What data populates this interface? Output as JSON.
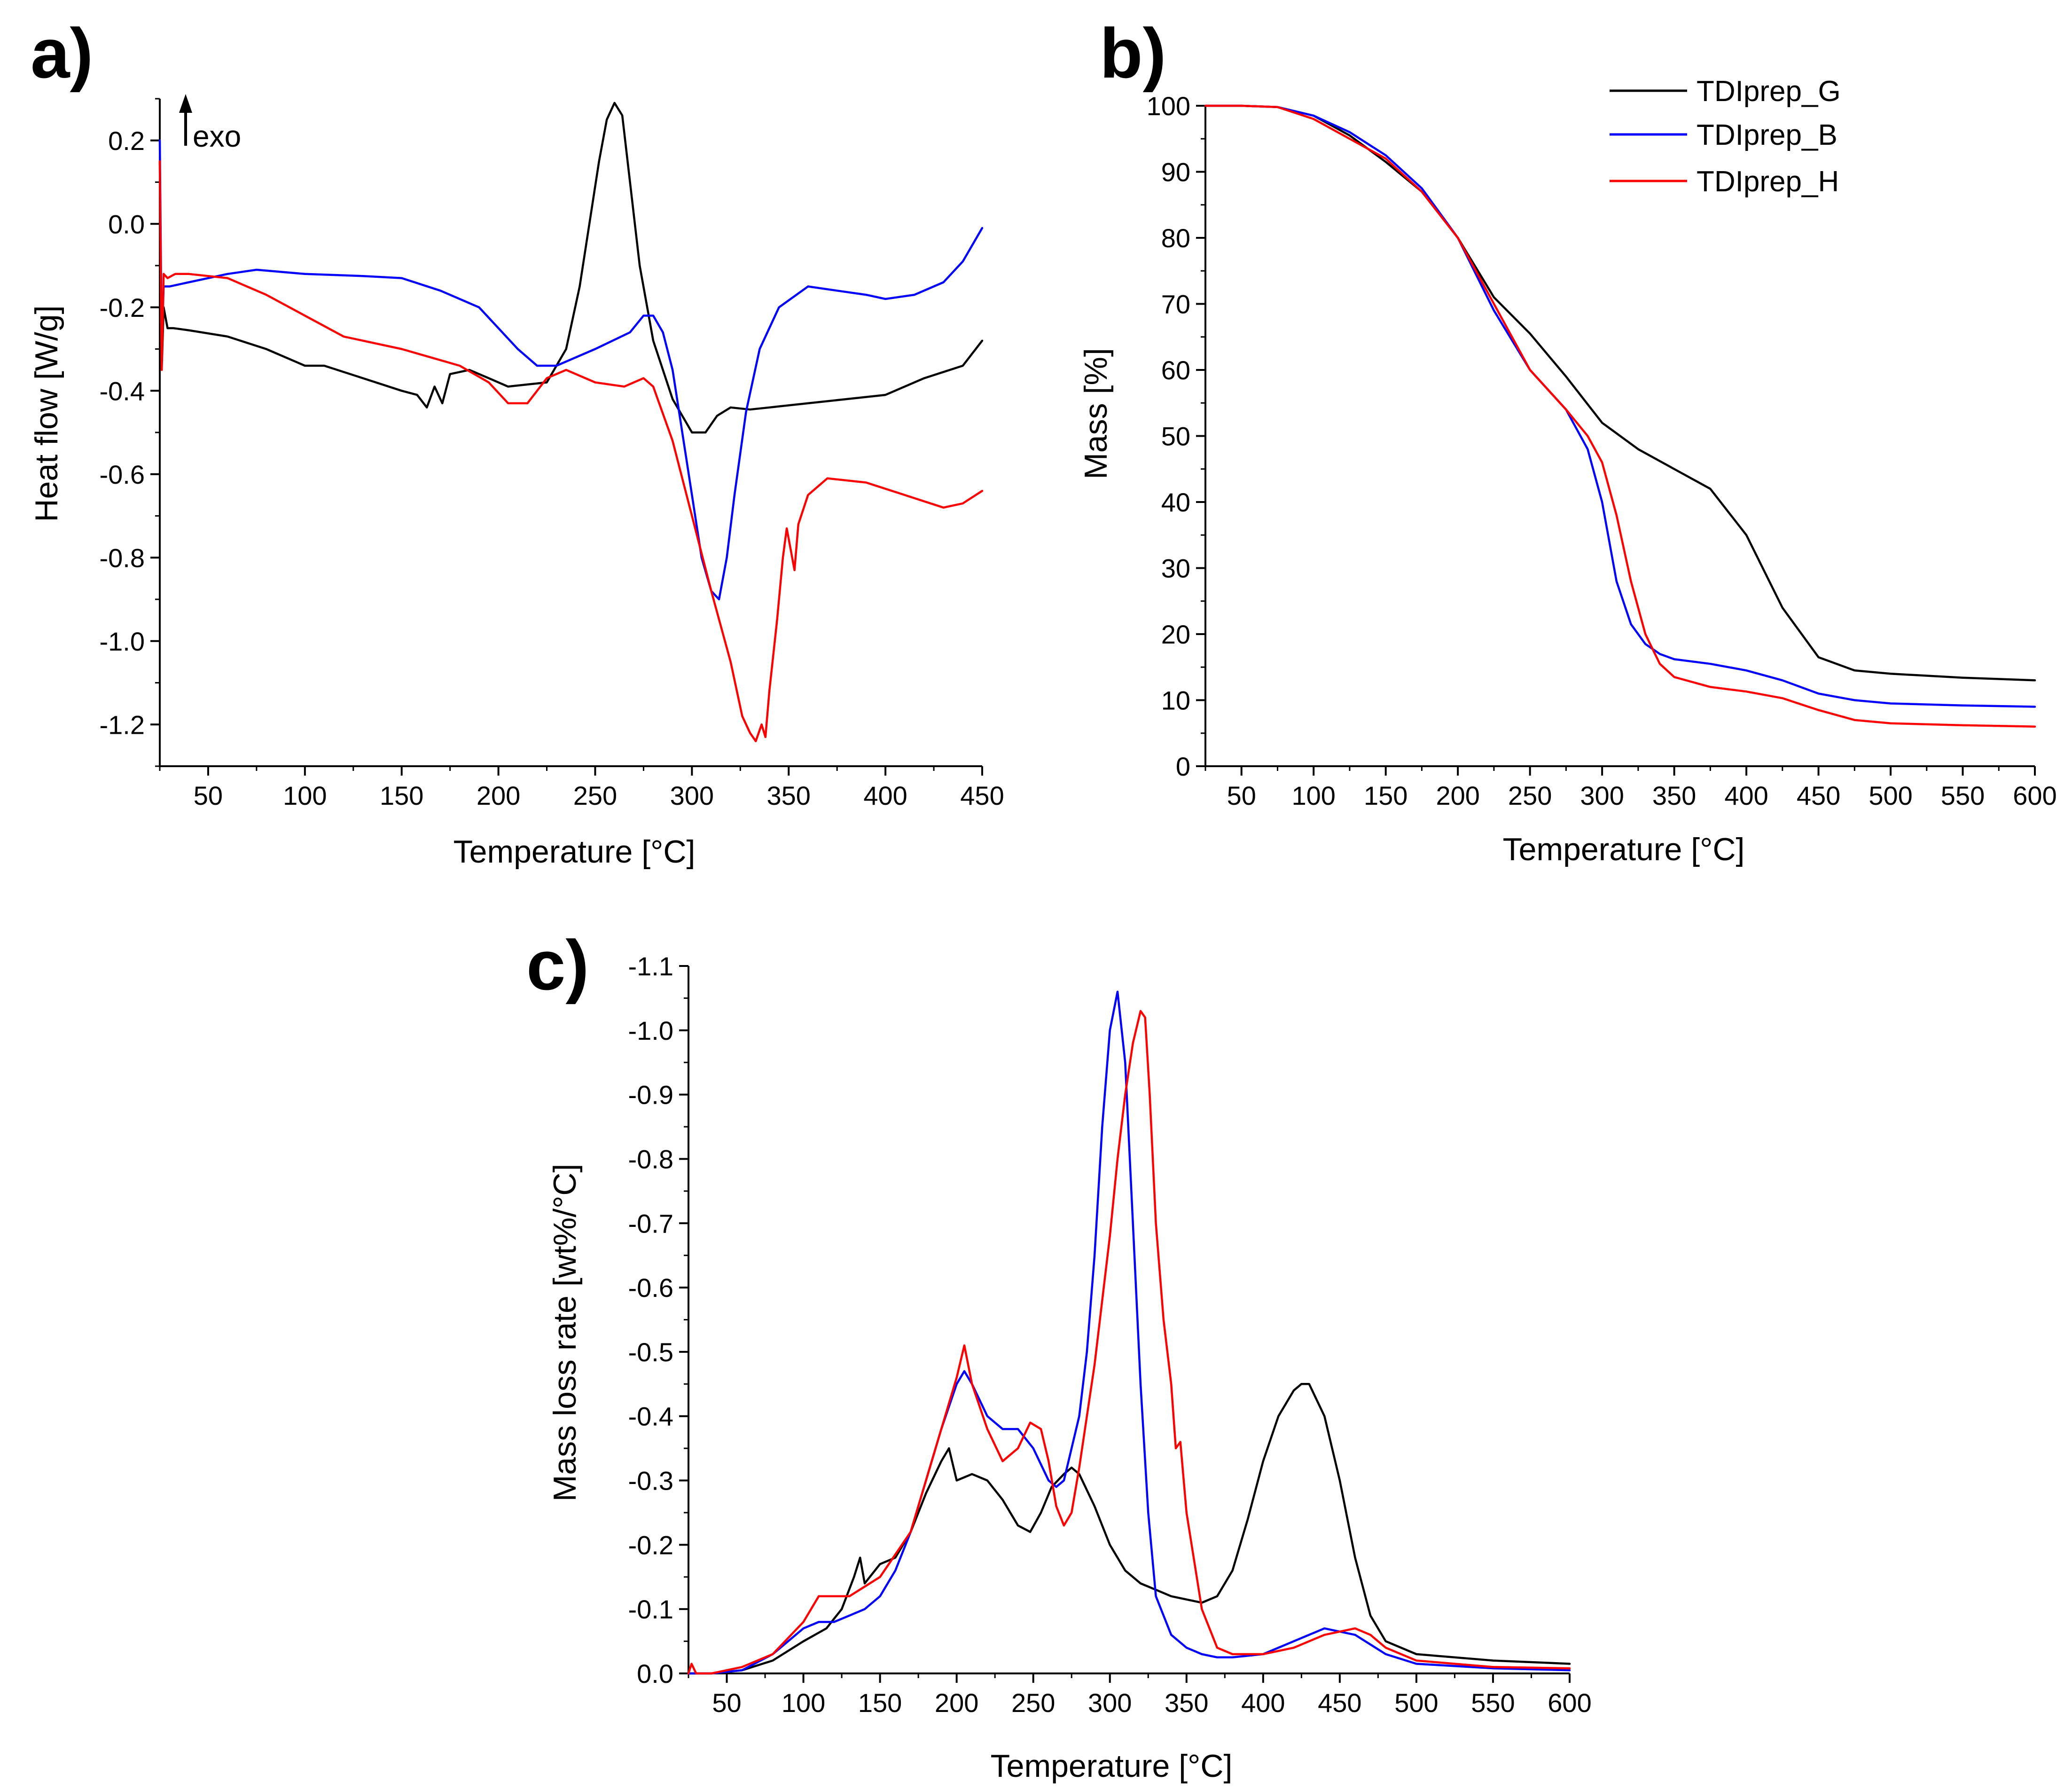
{
  "colors": {
    "TDIprep_G": "#000000",
    "TDIprep_B": "#0000ff",
    "TDIprep_H": "#ff0000"
  },
  "chart_data": [
    {
      "panel": "a)",
      "type": "line",
      "title": "",
      "xlabel": "Temperature [°C]",
      "ylabel": "Heat flow [W/g]",
      "xlim": [
        25,
        450
      ],
      "ylim": [
        -1.3,
        0.3
      ],
      "xticks": [
        50,
        100,
        150,
        200,
        250,
        300,
        350,
        400,
        450
      ],
      "yticks": [
        -1.2,
        -1.0,
        -0.8,
        -0.6,
        -0.4,
        -0.2,
        0.0,
        0.2
      ],
      "ytick_labels": [
        "-1.2",
        "-1.0",
        "-0.8",
        "-0.6",
        "-0.4",
        "-0.2",
        "0.0",
        "0.2"
      ],
      "annotation": "exo",
      "series": [
        {
          "name": "TDIprep_G",
          "x": [
            25,
            26,
            27,
            29,
            32,
            40,
            60,
            80,
            100,
            110,
            130,
            150,
            158,
            163,
            167,
            171,
            175,
            185,
            195,
            205,
            215,
            225,
            235,
            242,
            247,
            252,
            256,
            260,
            264,
            268,
            273,
            280,
            290,
            300,
            307,
            313,
            320,
            330,
            340,
            360,
            380,
            400,
            420,
            440,
            450
          ],
          "y": [
            0.15,
            -0.35,
            -0.2,
            -0.25,
            -0.25,
            -0.255,
            -0.27,
            -0.3,
            -0.34,
            -0.34,
            -0.37,
            -0.4,
            -0.41,
            -0.44,
            -0.39,
            -0.43,
            -0.36,
            -0.35,
            -0.37,
            -0.39,
            -0.385,
            -0.38,
            -0.3,
            -0.15,
            0.0,
            0.15,
            0.25,
            0.29,
            0.26,
            0.1,
            -0.1,
            -0.28,
            -0.42,
            -0.5,
            -0.5,
            -0.46,
            -0.44,
            -0.445,
            -0.44,
            -0.43,
            -0.42,
            -0.41,
            -0.37,
            -0.34,
            -0.28
          ]
        },
        {
          "name": "TDIprep_B",
          "x": [
            25,
            26,
            27,
            30,
            40,
            60,
            75,
            100,
            130,
            150,
            170,
            190,
            210,
            220,
            230,
            250,
            268,
            275,
            280,
            285,
            290,
            295,
            300,
            305,
            310,
            314,
            318,
            322,
            328,
            335,
            345,
            360,
            375,
            390,
            400,
            415,
            430,
            440,
            450
          ],
          "y": [
            0.2,
            -0.3,
            -0.15,
            -0.15,
            -0.14,
            -0.12,
            -0.11,
            -0.12,
            -0.125,
            -0.13,
            -0.16,
            -0.2,
            -0.3,
            -0.34,
            -0.34,
            -0.3,
            -0.26,
            -0.22,
            -0.22,
            -0.26,
            -0.35,
            -0.5,
            -0.65,
            -0.8,
            -0.88,
            -0.9,
            -0.8,
            -0.65,
            -0.45,
            -0.3,
            -0.2,
            -0.15,
            -0.16,
            -0.17,
            -0.18,
            -0.17,
            -0.14,
            -0.09,
            -0.01
          ]
        },
        {
          "name": "TDIprep_H",
          "x": [
            25,
            26,
            27,
            29,
            33,
            40,
            60,
            80,
            100,
            120,
            150,
            180,
            195,
            205,
            215,
            225,
            235,
            250,
            265,
            275,
            280,
            290,
            300,
            310,
            320,
            326,
            330,
            333,
            336,
            338,
            340,
            344,
            347,
            349,
            351,
            353,
            355,
            360,
            370,
            390,
            410,
            430,
            440,
            450
          ],
          "y": [
            0.15,
            -0.35,
            -0.12,
            -0.13,
            -0.12,
            -0.12,
            -0.13,
            -0.17,
            -0.22,
            -0.27,
            -0.3,
            -0.34,
            -0.38,
            -0.43,
            -0.43,
            -0.37,
            -0.35,
            -0.38,
            -0.39,
            -0.37,
            -0.39,
            -0.52,
            -0.7,
            -0.88,
            -1.05,
            -1.18,
            -1.22,
            -1.24,
            -1.2,
            -1.23,
            -1.12,
            -0.95,
            -0.8,
            -0.73,
            -0.78,
            -0.83,
            -0.72,
            -0.65,
            -0.61,
            -0.62,
            -0.65,
            -0.68,
            -0.67,
            -0.64
          ]
        }
      ]
    },
    {
      "panel": "b)",
      "type": "line",
      "title": "",
      "xlabel": "Temperature [°C]",
      "ylabel": "Mass [%]",
      "xlim": [
        25,
        600
      ],
      "ylim": [
        0,
        100
      ],
      "xticks": [
        50,
        100,
        150,
        200,
        250,
        300,
        350,
        400,
        450,
        500,
        550,
        600
      ],
      "yticks": [
        0,
        10,
        20,
        30,
        40,
        50,
        60,
        70,
        80,
        90,
        100
      ],
      "legend_position": "top-right",
      "legend": [
        "TDIprep_G",
        "TDIprep_B",
        "TDIprep_H"
      ],
      "series": [
        {
          "name": "TDIprep_G",
          "x": [
            25,
            50,
            75,
            100,
            125,
            150,
            175,
            200,
            225,
            250,
            275,
            300,
            325,
            350,
            375,
            400,
            425,
            450,
            475,
            500,
            550,
            600
          ],
          "y": [
            100,
            100,
            99.8,
            98.5,
            95.5,
            91.5,
            87,
            80,
            71,
            65.5,
            59,
            52,
            48,
            45,
            42,
            35,
            24,
            16.5,
            14.5,
            14,
            13.4,
            13
          ]
        },
        {
          "name": "TDIprep_B",
          "x": [
            25,
            50,
            75,
            100,
            125,
            150,
            175,
            200,
            225,
            250,
            275,
            290,
            300,
            310,
            320,
            330,
            340,
            350,
            375,
            400,
            425,
            450,
            475,
            500,
            550,
            600
          ],
          "y": [
            100,
            100,
            99.8,
            98.5,
            96,
            92.5,
            87.5,
            80,
            69,
            60,
            54,
            48,
            40,
            28,
            21.5,
            18.5,
            17,
            16.2,
            15.5,
            14.5,
            13,
            11,
            10,
            9.5,
            9.2,
            9
          ]
        },
        {
          "name": "TDIprep_H",
          "x": [
            25,
            50,
            75,
            100,
            125,
            150,
            175,
            200,
            225,
            250,
            275,
            290,
            300,
            310,
            320,
            330,
            340,
            350,
            375,
            400,
            425,
            450,
            475,
            500,
            550,
            600
          ],
          "y": [
            100,
            100,
            99.8,
            98,
            95,
            92,
            87,
            80,
            70,
            60,
            54,
            50,
            46,
            38,
            28,
            20,
            15.5,
            13.5,
            12,
            11.3,
            10.3,
            8.5,
            7,
            6.5,
            6.2,
            6
          ]
        }
      ]
    },
    {
      "panel": "c)",
      "type": "line",
      "title": "",
      "xlabel": "Temperature [°C]",
      "ylabel": "Mass loss rate [wt%/°C]",
      "xlim": [
        25,
        600
      ],
      "ylim": [
        0,
        -1.1
      ],
      "xticks": [
        50,
        100,
        150,
        200,
        250,
        300,
        350,
        400,
        450,
        500,
        550,
        600
      ],
      "yticks": [
        0.0,
        -0.1,
        -0.2,
        -0.3,
        -0.4,
        -0.5,
        -0.6,
        -0.7,
        -0.8,
        -0.9,
        -1.0,
        -1.1
      ],
      "ytick_labels": [
        "0.0",
        "-0.1",
        "-0.2",
        "-0.3",
        "-0.4",
        "-0.5",
        "-0.6",
        "-0.7",
        "-0.8",
        "-0.9",
        "-1.0",
        "-1.1"
      ],
      "series": [
        {
          "name": "TDIprep_G",
          "x": [
            25,
            40,
            60,
            80,
            100,
            115,
            125,
            133,
            137,
            140,
            150,
            160,
            170,
            180,
            190,
            195,
            200,
            210,
            220,
            230,
            240,
            248,
            255,
            262,
            270,
            275,
            280,
            290,
            300,
            310,
            320,
            330,
            340,
            350,
            360,
            370,
            380,
            390,
            400,
            410,
            420,
            425,
            430,
            440,
            450,
            460,
            470,
            480,
            500,
            550,
            600
          ],
          "y": [
            0,
            0,
            -0.005,
            -0.02,
            -0.05,
            -0.07,
            -0.1,
            -0.15,
            -0.18,
            -0.14,
            -0.17,
            -0.18,
            -0.22,
            -0.28,
            -0.33,
            -0.35,
            -0.3,
            -0.31,
            -0.3,
            -0.27,
            -0.23,
            -0.22,
            -0.25,
            -0.29,
            -0.31,
            -0.32,
            -0.31,
            -0.26,
            -0.2,
            -0.16,
            -0.14,
            -0.13,
            -0.12,
            -0.115,
            -0.11,
            -0.12,
            -0.16,
            -0.24,
            -0.33,
            -0.4,
            -0.44,
            -0.45,
            -0.45,
            -0.4,
            -0.3,
            -0.18,
            -0.09,
            -0.05,
            -0.03,
            -0.02,
            -0.015
          ]
        },
        {
          "name": "TDIprep_B",
          "x": [
            25,
            40,
            60,
            80,
            100,
            110,
            120,
            130,
            140,
            150,
            160,
            170,
            180,
            190,
            200,
            205,
            210,
            220,
            230,
            240,
            250,
            260,
            265,
            270,
            280,
            285,
            290,
            295,
            300,
            305,
            310,
            315,
            320,
            325,
            330,
            340,
            350,
            360,
            370,
            380,
            400,
            420,
            440,
            460,
            480,
            500,
            550,
            600
          ],
          "y": [
            0,
            0,
            -0.005,
            -0.03,
            -0.07,
            -0.08,
            -0.08,
            -0.09,
            -0.1,
            -0.12,
            -0.16,
            -0.22,
            -0.3,
            -0.38,
            -0.45,
            -0.47,
            -0.45,
            -0.4,
            -0.38,
            -0.38,
            -0.35,
            -0.3,
            -0.29,
            -0.3,
            -0.4,
            -0.5,
            -0.65,
            -0.85,
            -1.0,
            -1.06,
            -0.95,
            -0.7,
            -0.45,
            -0.25,
            -0.12,
            -0.06,
            -0.04,
            -0.03,
            -0.025,
            -0.025,
            -0.03,
            -0.05,
            -0.07,
            -0.06,
            -0.03,
            -0.015,
            -0.008,
            -0.005
          ]
        },
        {
          "name": "TDIprep_H",
          "x": [
            25,
            27,
            30,
            40,
            60,
            80,
            100,
            110,
            120,
            130,
            150,
            170,
            180,
            190,
            200,
            205,
            210,
            220,
            230,
            240,
            248,
            255,
            260,
            265,
            270,
            275,
            280,
            290,
            300,
            305,
            310,
            315,
            320,
            323,
            326,
            330,
            335,
            340,
            343,
            346,
            350,
            360,
            370,
            380,
            400,
            420,
            440,
            460,
            470,
            480,
            500,
            550,
            600
          ],
          "y": [
            0,
            -0.015,
            0,
            0,
            -0.01,
            -0.03,
            -0.08,
            -0.12,
            -0.12,
            -0.12,
            -0.15,
            -0.22,
            -0.3,
            -0.38,
            -0.46,
            -0.51,
            -0.45,
            -0.38,
            -0.33,
            -0.35,
            -0.39,
            -0.38,
            -0.33,
            -0.26,
            -0.23,
            -0.25,
            -0.32,
            -0.48,
            -0.68,
            -0.8,
            -0.9,
            -0.98,
            -1.03,
            -1.02,
            -0.9,
            -0.7,
            -0.55,
            -0.45,
            -0.35,
            -0.36,
            -0.25,
            -0.1,
            -0.04,
            -0.03,
            -0.03,
            -0.04,
            -0.06,
            -0.07,
            -0.06,
            -0.04,
            -0.02,
            -0.01,
            -0.008
          ]
        }
      ]
    }
  ]
}
